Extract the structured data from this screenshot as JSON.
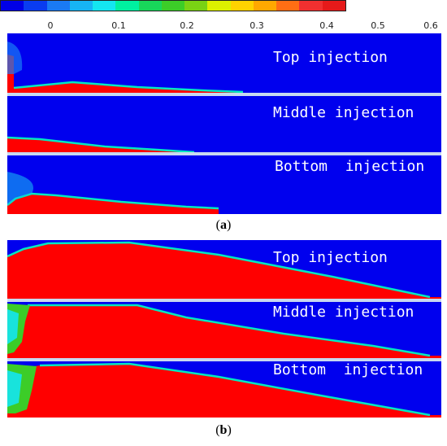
{
  "colorbar": {
    "colors": [
      "#0000e6",
      "#0a3cf0",
      "#1a7af5",
      "#17b4f4",
      "#14e6f0",
      "#00f0a0",
      "#18d75a",
      "#3ccd28",
      "#7ad214",
      "#dcf000",
      "#ffd200",
      "#ffa800",
      "#ff6e14",
      "#f03030",
      "#e61a1a"
    ],
    "ticks": [
      "0",
      "0.1",
      "0.2",
      "0.3",
      "0.4",
      "0.5",
      "0.6"
    ]
  },
  "figure_a": {
    "caption_open": "(",
    "caption_letter": "a",
    "caption_close": ")",
    "panels": [
      {
        "label": "Top injection"
      },
      {
        "label": "Middle injection"
      },
      {
        "label": "Bottom  injection"
      }
    ]
  },
  "figure_b": {
    "caption_open": "(",
    "caption_letter": "b",
    "caption_close": ")",
    "panels": [
      {
        "label": "Top injection"
      },
      {
        "label": "Middle injection"
      },
      {
        "label": "Bottom  injection"
      }
    ]
  },
  "colors": {
    "water": "#0000ee",
    "fill": "#ff0000",
    "edge": "#00e8c0",
    "separator": "#c8d8f0"
  }
}
